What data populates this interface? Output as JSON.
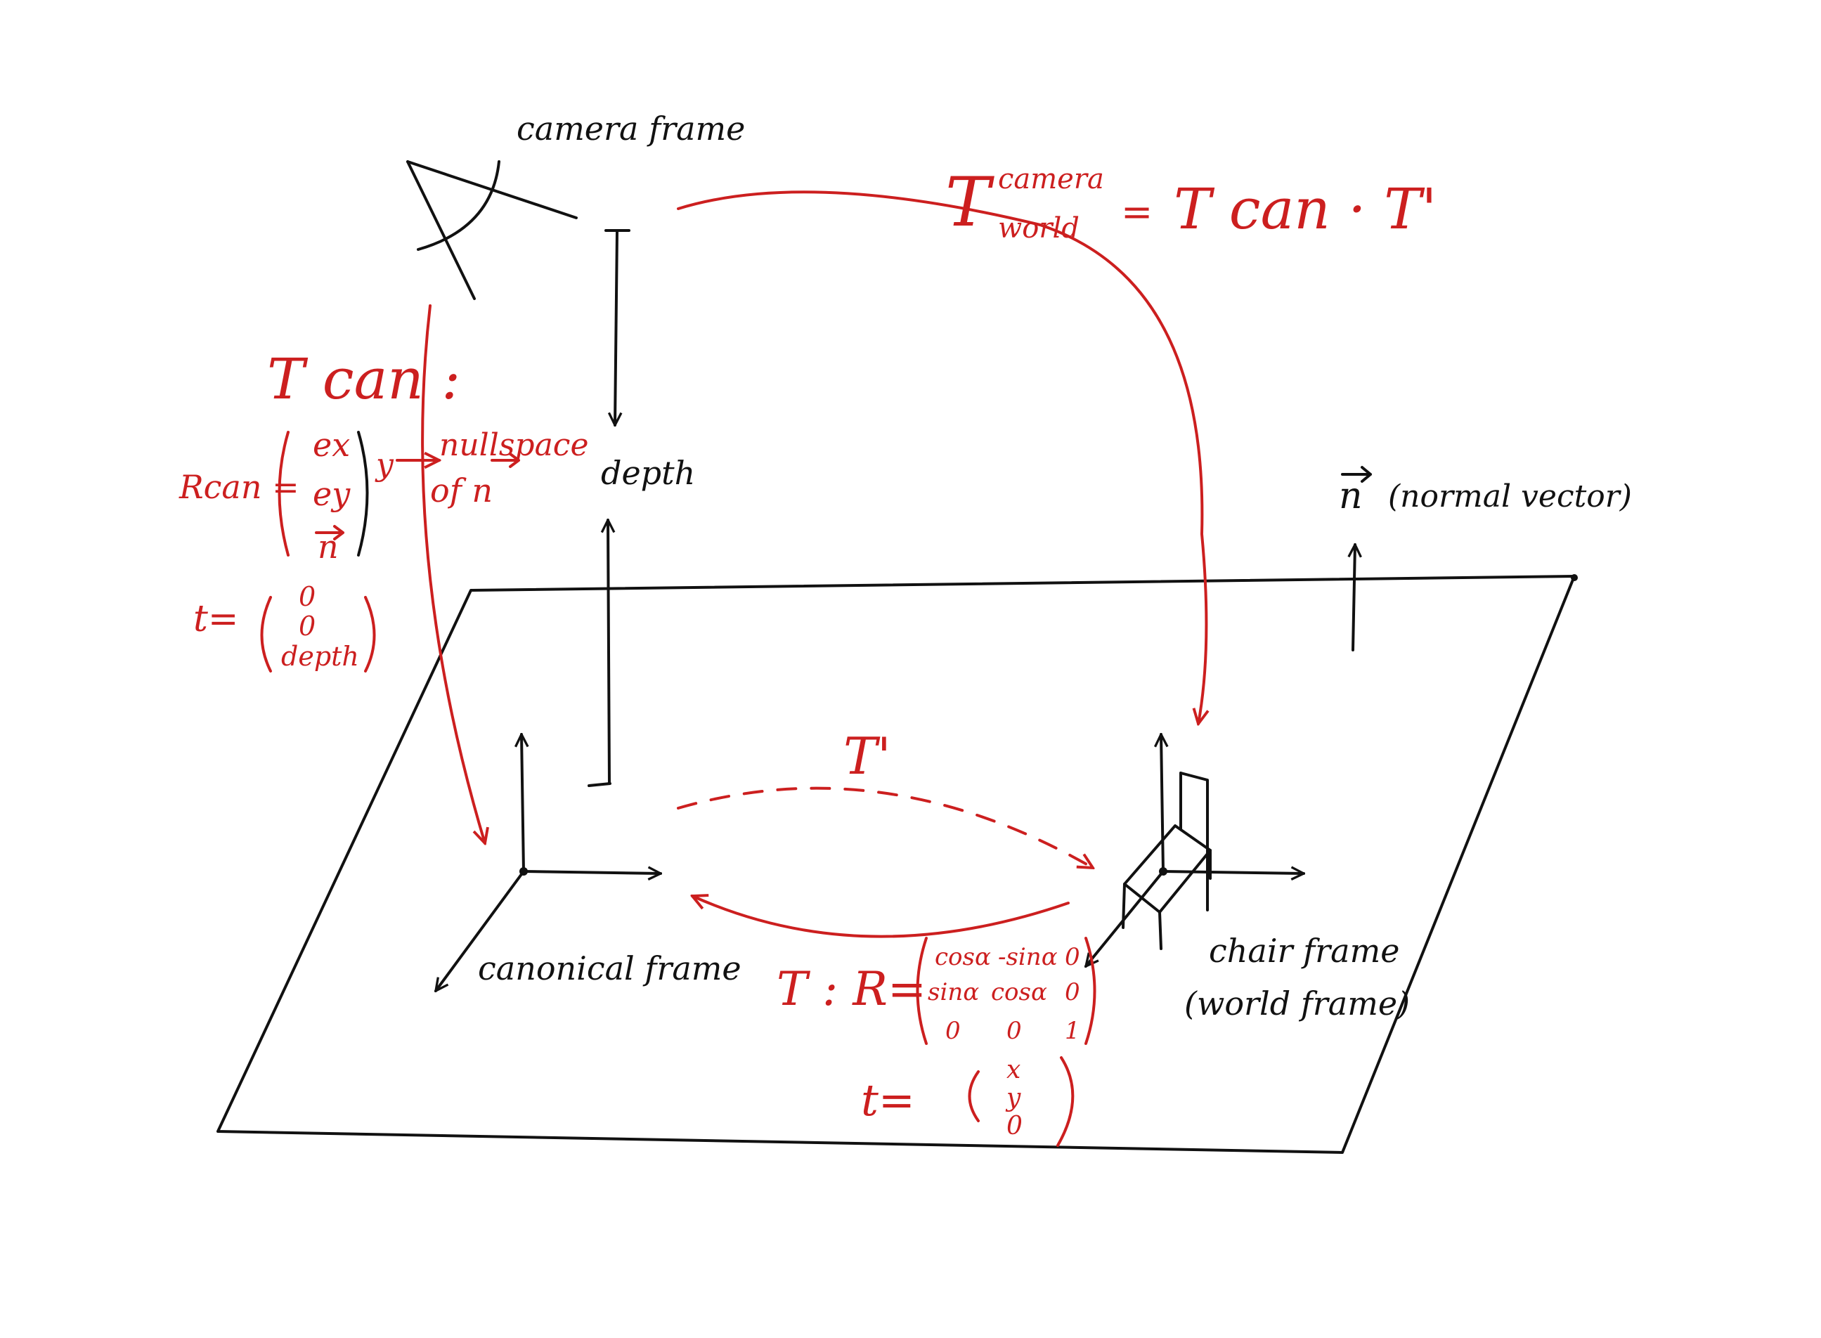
{
  "colors": {
    "ink": "#111111",
    "red_ink": "#cc1f1f",
    "paper": "#ffffff"
  },
  "labels": {
    "camera_frame": "camera frame",
    "depth": "depth",
    "canonical_frame": "canonical frame",
    "chair_frame": "chair frame",
    "world_frame": "(world frame)",
    "normal_vector": "(normal vector)",
    "n_symbol": "n"
  },
  "equations": {
    "T_symbol": "T",
    "camera_sup": "camera",
    "world_sub": "world",
    "equals": "=",
    "rhs": "T can · T'",
    "tcan_title": "T can :",
    "rcan": "Rcan =",
    "ex": "ex",
    "ey": "ey",
    "n_vec": "n",
    "y_mark": "y",
    "nullspace": "nullspace",
    "of_n": "of  n",
    "t_eq": "t=",
    "t_can_vec": [
      "0",
      "0",
      "depth"
    ],
    "t_prime": "T'",
    "t_colon_r": "T :  R=",
    "rot_row1": [
      "cosα",
      "-sinα",
      "0"
    ],
    "rot_row2": [
      "sinα",
      "cosα",
      "0"
    ],
    "rot_row3": [
      "0",
      "0",
      "1"
    ],
    "t_eq2": "t=",
    "t_vec2": [
      "x",
      "y",
      "0"
    ]
  }
}
